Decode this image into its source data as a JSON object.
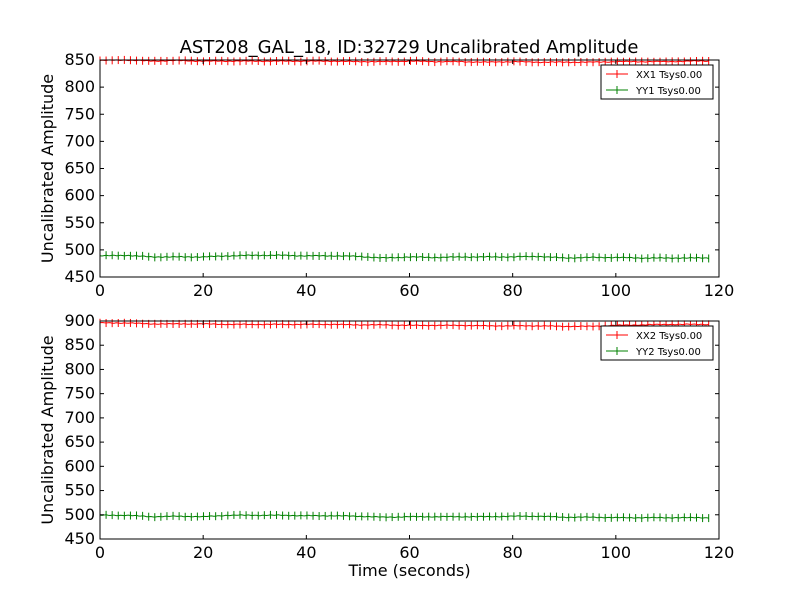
{
  "title": "AST208_GAL_18, ID:32729 Uncalibrated Amplitude",
  "chart_data": [
    {
      "type": "line",
      "title": "AST208_GAL_18, ID:32729 Uncalibrated Amplitude",
      "xlabel": "",
      "ylabel": "Uncalibrated Amplitude",
      "xlim": [
        0,
        120
      ],
      "ylim": [
        450,
        850
      ],
      "xticks": [
        "0",
        "20",
        "40",
        "60",
        "80",
        "100",
        "120"
      ],
      "yticks": [
        "450",
        "500",
        "550",
        "600",
        "650",
        "700",
        "750",
        "800",
        "850"
      ],
      "grid": false,
      "legend_position": "top-right",
      "series": [
        {
          "name": "XX1 Tsys0.00",
          "color": "#ff0000",
          "x": [
            0,
            5,
            10,
            15,
            20,
            25,
            30,
            35,
            40,
            45,
            50,
            55,
            60,
            65,
            70,
            75,
            80,
            85,
            90,
            95,
            100,
            105,
            110,
            115,
            118
          ],
          "values": [
            849,
            850,
            848,
            849,
            848,
            848,
            848,
            848,
            848,
            848,
            847,
            847,
            848,
            847,
            847,
            846,
            847,
            846,
            846,
            846,
            847,
            847,
            847,
            848,
            848
          ]
        },
        {
          "name": "YY1 Tsys0.00",
          "color": "#008000",
          "x": [
            0,
            5,
            10,
            15,
            20,
            25,
            30,
            35,
            40,
            45,
            50,
            55,
            60,
            65,
            70,
            75,
            80,
            85,
            90,
            95,
            100,
            105,
            110,
            115,
            118
          ],
          "values": [
            489,
            490,
            487,
            487,
            487,
            489,
            490,
            490,
            489,
            489,
            488,
            485,
            487,
            486,
            487,
            487,
            487,
            488,
            485,
            486,
            486,
            485,
            485,
            485,
            485
          ]
        }
      ]
    },
    {
      "type": "line",
      "title": "",
      "xlabel": "Time (seconds)",
      "ylabel": "Uncalibrated Amplitude",
      "xlim": [
        0,
        120
      ],
      "ylim": [
        450,
        900
      ],
      "xticks": [
        "0",
        "20",
        "40",
        "60",
        "80",
        "100",
        "120"
      ],
      "yticks": [
        "450",
        "500",
        "550",
        "600",
        "650",
        "700",
        "750",
        "800",
        "850",
        "900"
      ],
      "grid": false,
      "legend_position": "top-right",
      "series": [
        {
          "name": "XX2 Tsys0.00",
          "color": "#ff0000",
          "x": [
            0,
            5,
            10,
            15,
            20,
            25,
            30,
            35,
            40,
            45,
            50,
            55,
            60,
            65,
            70,
            75,
            80,
            85,
            90,
            95,
            100,
            105,
            110,
            115,
            118
          ],
          "values": [
            896,
            896,
            894,
            894,
            894,
            893,
            893,
            893,
            893,
            893,
            892,
            892,
            891,
            891,
            891,
            890,
            890,
            890,
            889,
            889,
            891,
            892,
            893,
            893,
            893
          ]
        },
        {
          "name": "YY2 Tsys0.00",
          "color": "#008000",
          "x": [
            0,
            5,
            10,
            15,
            20,
            25,
            30,
            35,
            40,
            45,
            50,
            55,
            60,
            65,
            70,
            75,
            80,
            85,
            90,
            95,
            100,
            105,
            110,
            115,
            118
          ],
          "values": [
            499,
            499,
            496,
            497,
            496,
            499,
            499,
            499,
            498,
            498,
            497,
            495,
            496,
            496,
            496,
            496,
            497,
            497,
            495,
            495,
            494,
            494,
            494,
            494,
            494
          ]
        }
      ]
    }
  ]
}
